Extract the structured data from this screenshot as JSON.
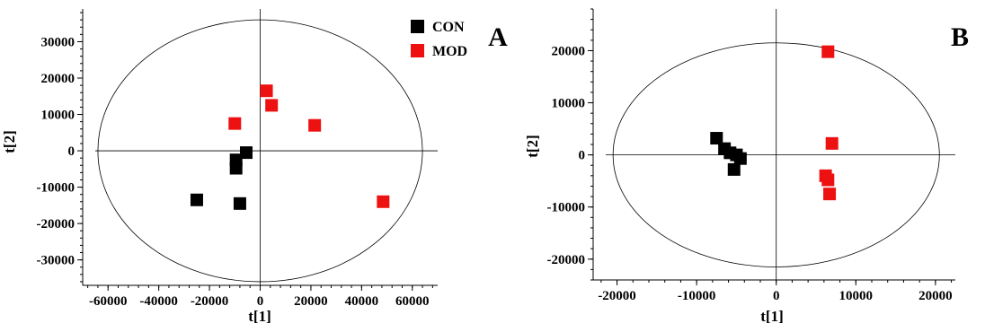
{
  "chart_data": [
    {
      "type": "scatter",
      "panel_label": "A",
      "xlabel": "t[1]",
      "ylabel": "t[2]",
      "xlim": [
        -70000,
        70000
      ],
      "ylim": [
        -37000,
        39000
      ],
      "x_ticks": [
        -60000,
        -40000,
        -20000,
        0,
        20000,
        40000,
        60000
      ],
      "y_ticks": [
        -30000,
        -20000,
        -10000,
        0,
        10000,
        20000,
        30000
      ],
      "x_tick_labels": [
        "-60000",
        "-40000",
        "-20000",
        "0",
        "20000",
        "40000",
        "60000"
      ],
      "y_tick_labels": [
        "-30000",
        "-20000",
        "-10000",
        "0",
        "10000",
        "20000",
        "30000"
      ],
      "ellipse": {
        "rx": 64000,
        "ry": 36000
      },
      "legend": {
        "placement": "top-right"
      },
      "series": [
        {
          "name": "CON",
          "color": "#000000",
          "points": [
            {
              "x": -5500,
              "y": -500
            },
            {
              "x": -9500,
              "y": -2500
            },
            {
              "x": -9500,
              "y": -4800
            },
            {
              "x": -25000,
              "y": -13500
            },
            {
              "x": -8000,
              "y": -14500
            }
          ]
        },
        {
          "name": "MOD",
          "color": "#ee1111",
          "points": [
            {
              "x": 2500,
              "y": 16500
            },
            {
              "x": 4500,
              "y": 12500
            },
            {
              "x": -10000,
              "y": 7500
            },
            {
              "x": 21500,
              "y": 7000
            },
            {
              "x": 48500,
              "y": -14000
            }
          ]
        }
      ]
    },
    {
      "type": "scatter",
      "panel_label": "B",
      "xlabel": "t[1]",
      "ylabel": "t[2]",
      "xlim": [
        -23000,
        22500
      ],
      "ylim": [
        -24000,
        28000
      ],
      "x_ticks": [
        -20000,
        -10000,
        0,
        10000,
        20000
      ],
      "y_ticks": [
        -20000,
        -10000,
        0,
        10000,
        20000
      ],
      "x_tick_labels": [
        "-20000",
        "-10000",
        "0",
        "10000",
        "20000"
      ],
      "y_tick_labels": [
        "-20000",
        "-10000",
        "0",
        "10000",
        "20000"
      ],
      "ellipse": {
        "rx": 20500,
        "ry": 21500
      },
      "series": [
        {
          "name": "CON",
          "color": "#000000",
          "points": [
            {
              "x": -7500,
              "y": 3200
            },
            {
              "x": -6500,
              "y": 1200
            },
            {
              "x": -5800,
              "y": 400
            },
            {
              "x": -5000,
              "y": 0
            },
            {
              "x": -4500,
              "y": -700
            },
            {
              "x": -5300,
              "y": -2800
            }
          ]
        },
        {
          "name": "MOD",
          "color": "#ee1111",
          "points": [
            {
              "x": 6500,
              "y": 19800
            },
            {
              "x": 7000,
              "y": 2200
            },
            {
              "x": 6200,
              "y": -4000
            },
            {
              "x": 6500,
              "y": -4800
            },
            {
              "x": 6700,
              "y": -7500
            }
          ]
        }
      ]
    }
  ]
}
